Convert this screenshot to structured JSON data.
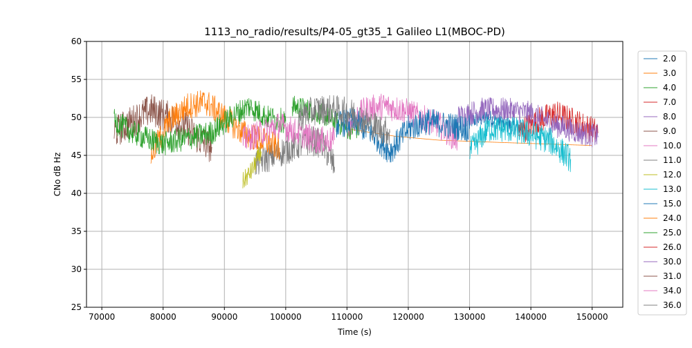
{
  "chart_data": {
    "type": "line",
    "title": "1113_no_radio/results/P4-05_gt35_1 Galileo L1(MBOC-PD)",
    "xlabel": "Time (s)",
    "ylabel": "CNo dB Hz",
    "xlim": [
      67500,
      155000
    ],
    "ylim": [
      25,
      60
    ],
    "xticks": [
      {
        "value": 70000,
        "label": "70000"
      },
      {
        "value": 80000,
        "label": "80000"
      },
      {
        "value": 90000,
        "label": "90000"
      },
      {
        "value": 100000,
        "label": "100000"
      },
      {
        "value": 110000,
        "label": "110000"
      },
      {
        "value": 120000,
        "label": "120000"
      },
      {
        "value": 130000,
        "label": "130000"
      },
      {
        "value": 140000,
        "label": "140000"
      },
      {
        "value": 150000,
        "label": "150000"
      }
    ],
    "yticks": [
      {
        "value": 25,
        "label": "25"
      },
      {
        "value": 30,
        "label": "30"
      },
      {
        "value": 35,
        "label": "35"
      },
      {
        "value": 40,
        "label": "40"
      },
      {
        "value": 45,
        "label": "45"
      },
      {
        "value": 50,
        "label": "50"
      },
      {
        "value": 55,
        "label": "55"
      },
      {
        "value": 60,
        "label": "60"
      }
    ],
    "grid": true,
    "legend_position": "outside-right",
    "series": [
      {
        "name": "2.0",
        "color": "#1f77b4",
        "noise": 0.6,
        "points": [
          [
            130000,
            49.5
          ],
          [
            133000,
            50
          ],
          [
            136000,
            49
          ],
          [
            139000,
            48.5
          ]
        ]
      },
      {
        "name": "3.0",
        "color": "#ff7f0e",
        "noise": 0.0,
        "points": [
          [
            110000,
            48.5
          ],
          [
            118000,
            47.5
          ],
          [
            125000,
            47
          ],
          [
            135000,
            46.7
          ],
          [
            150000,
            46.3
          ]
        ]
      },
      {
        "name": "4.0",
        "color": "#2ca02c",
        "noise": 0.8,
        "points": [
          [
            101000,
            51.5
          ],
          [
            104000,
            51
          ],
          [
            107000,
            50
          ],
          [
            110000,
            48.5
          ],
          [
            112000,
            48.5
          ]
        ]
      },
      {
        "name": "7.0",
        "color": "#d62728",
        "noise": 1.0,
        "points": [
          [
            138000,
            48
          ],
          [
            141000,
            49.5
          ],
          [
            144000,
            50.5
          ],
          [
            147000,
            49.5
          ],
          [
            151000,
            48
          ]
        ]
      },
      {
        "name": "8.0",
        "color": "#9467bd",
        "noise": 0.9,
        "points": [
          [
            128000,
            50
          ],
          [
            132000,
            51
          ],
          [
            136000,
            51
          ],
          [
            140000,
            50.5
          ],
          [
            144000,
            49
          ],
          [
            148000,
            48
          ],
          [
            151000,
            47.5
          ]
        ]
      },
      {
        "name": "9.0",
        "color": "#8c564b",
        "noise": 1.2,
        "points": [
          [
            72000,
            48
          ],
          [
            75000,
            49.5
          ],
          [
            78000,
            51
          ],
          [
            81000,
            50
          ],
          [
            84000,
            48.5
          ],
          [
            86000,
            47
          ],
          [
            88000,
            46
          ]
        ]
      },
      {
        "name": "10.0",
        "color": "#e377c2",
        "noise": 1.0,
        "points": [
          [
            110000,
            49
          ],
          [
            113000,
            51
          ],
          [
            116000,
            51.5
          ],
          [
            119000,
            51
          ],
          [
            122000,
            50
          ],
          [
            125000,
            49
          ],
          [
            128000,
            47
          ]
        ]
      },
      {
        "name": "11.0",
        "color": "#7f7f7f",
        "noise": 1.1,
        "points": [
          [
            95000,
            44
          ],
          [
            98000,
            45
          ],
          [
            101000,
            46
          ],
          [
            104000,
            47
          ],
          [
            106000,
            46.5
          ],
          [
            108000,
            43.5
          ]
        ]
      },
      {
        "name": "12.0",
        "color": "#bcbd22",
        "noise": 0.7,
        "points": [
          [
            93000,
            41.5
          ],
          [
            94500,
            43
          ],
          [
            96000,
            45.5
          ]
        ]
      },
      {
        "name": "13.0",
        "color": "#17becf",
        "noise": 1.0,
        "points": [
          [
            130000,
            45.5
          ],
          [
            133000,
            48.5
          ],
          [
            136000,
            48.5
          ],
          [
            139000,
            48
          ],
          [
            143000,
            47
          ],
          [
            146500,
            44.5
          ]
        ]
      },
      {
        "name": "15.0",
        "color": "#1f77b4",
        "noise": 1.0,
        "points": [
          [
            108000,
            49
          ],
          [
            111000,
            49.5
          ],
          [
            114000,
            48
          ],
          [
            117000,
            45.5
          ],
          [
            120000,
            48.5
          ],
          [
            123000,
            49.5
          ],
          [
            126000,
            49
          ],
          [
            130000,
            48.5
          ]
        ]
      },
      {
        "name": "24.0",
        "color": "#ff7f0e",
        "noise": 1.0,
        "points": [
          [
            78000,
            45
          ],
          [
            81000,
            49.5
          ],
          [
            84000,
            51.5
          ],
          [
            87000,
            52
          ],
          [
            90000,
            50
          ],
          [
            93000,
            48
          ],
          [
            96000,
            47
          ],
          [
            99000,
            46
          ]
        ]
      },
      {
        "name": "25.0",
        "color": "#2ca02c",
        "noise": 0.9,
        "points": [
          [
            72000,
            49.5
          ],
          [
            75000,
            48
          ],
          [
            78000,
            47
          ],
          [
            80000,
            46.5
          ],
          [
            88000,
            48
          ],
          [
            91000,
            50
          ],
          [
            94000,
            51.5
          ],
          [
            97000,
            50
          ],
          [
            100000,
            49.5
          ]
        ]
      },
      {
        "name": "26.0",
        "color": "#d62728",
        "noise": 0.0,
        "points": []
      },
      {
        "name": "30.0",
        "color": "#9467bd",
        "noise": 0.0,
        "points": []
      },
      {
        "name": "31.0",
        "color": "#8c564b",
        "noise": 0.0,
        "points": []
      },
      {
        "name": "34.0",
        "color": "#e377c2",
        "noise": 1.0,
        "points": [
          [
            93000,
            47
          ],
          [
            96000,
            48
          ],
          [
            99000,
            49
          ],
          [
            102000,
            48
          ],
          [
            105000,
            47
          ],
          [
            108000,
            47
          ]
        ]
      },
      {
        "name": "36.0",
        "color": "#7f7f7f",
        "noise": 1.1,
        "points": [
          [
            102000,
            50
          ],
          [
            105000,
            51
          ],
          [
            108000,
            51
          ],
          [
            111000,
            50.5
          ],
          [
            114000,
            49
          ],
          [
            117000,
            48
          ]
        ]
      }
    ]
  }
}
